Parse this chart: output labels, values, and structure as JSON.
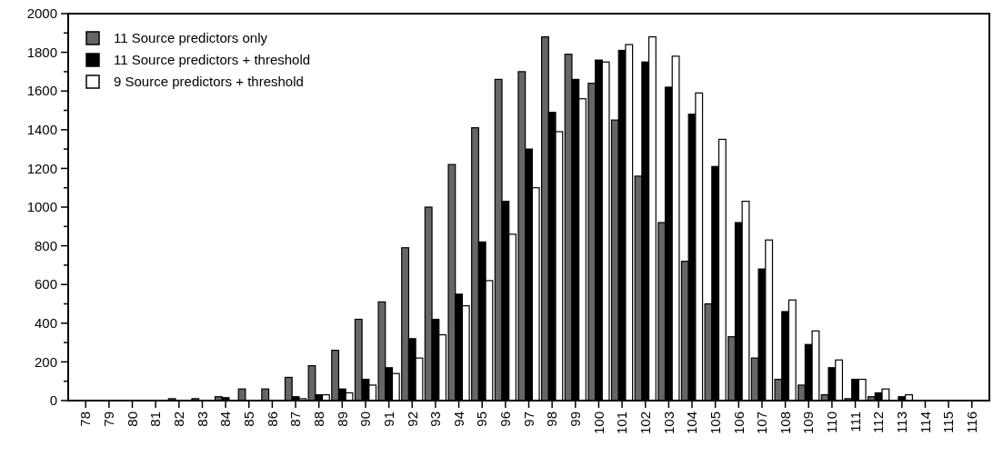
{
  "chart_data": {
    "type": "bar",
    "categories": [
      "78",
      "79",
      "80",
      "81",
      "82",
      "83",
      "84",
      "85",
      "86",
      "87",
      "88",
      "89",
      "90",
      "91",
      "92",
      "93",
      "94",
      "95",
      "96",
      "97",
      "98",
      "99",
      "100",
      "101",
      "102",
      "103",
      "104",
      "105",
      "106",
      "107",
      "108",
      "109",
      "110",
      "111",
      "112",
      "113",
      "114",
      "115",
      "116"
    ],
    "series": [
      {
        "name": "11 Source predictors only",
        "color": "#666666",
        "values": [
          0,
          0,
          0,
          0,
          10,
          10,
          20,
          60,
          60,
          120,
          180,
          260,
          420,
          510,
          790,
          1000,
          1220,
          1410,
          1660,
          1700,
          1880,
          1790,
          1640,
          1450,
          1160,
          920,
          720,
          500,
          330,
          220,
          110,
          80,
          30,
          10,
          20,
          null,
          0,
          0,
          0
        ]
      },
      {
        "name": "11 Source predictors + threshold",
        "color": "#000000",
        "values": [
          0,
          0,
          0,
          0,
          0,
          0,
          15,
          0,
          0,
          20,
          30,
          60,
          110,
          170,
          320,
          420,
          550,
          820,
          1030,
          1300,
          1490,
          1660,
          1760,
          1810,
          1750,
          1620,
          1480,
          1210,
          920,
          680,
          460,
          290,
          170,
          110,
          40,
          20,
          0,
          0,
          0
        ]
      },
      {
        "name": "9 Source predictors + threshold",
        "color": "#ffffff",
        "values": [
          0,
          0,
          0,
          0,
          0,
          0,
          0,
          0,
          0,
          10,
          30,
          40,
          80,
          140,
          220,
          340,
          490,
          620,
          860,
          1100,
          1390,
          1560,
          1750,
          1840,
          1880,
          1780,
          1590,
          1350,
          1030,
          830,
          520,
          360,
          210,
          110,
          60,
          30,
          0,
          0,
          0
        ]
      }
    ],
    "ylim": [
      0,
      2000
    ],
    "yticks": [
      0,
      {
        "value": 100,
        "label": null
      },
      200,
      {
        "value": 300,
        "label": null
      },
      400,
      {
        "value": 500,
        "label": null
      },
      600,
      {
        "value": 700,
        "label": null
      },
      800,
      {
        "value": 900,
        "label": null
      },
      1000,
      {
        "value": 1100,
        "label": null
      },
      1200,
      {
        "value": 1300,
        "label": null
      },
      1400,
      {
        "value": 1500,
        "label": null
      },
      1600,
      {
        "value": 1700,
        "label": null
      },
      1800,
      {
        "value": 1900,
        "label": null
      },
      2000
    ],
    "legend": "top left",
    "grid": false
  }
}
